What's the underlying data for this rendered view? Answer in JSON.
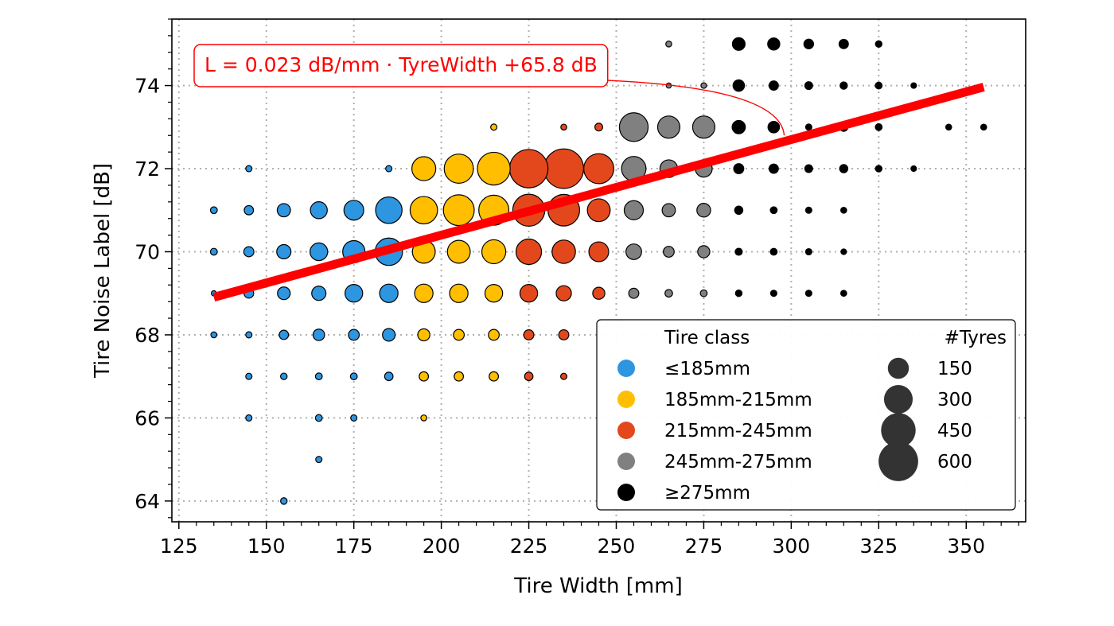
{
  "chart_data": {
    "type": "scatter",
    "title": "",
    "xlabel": "Tire Width [mm]",
    "ylabel": "Tire Noise Label [dB]",
    "xlim": [
      123,
      367
    ],
    "ylim": [
      63.5,
      75.6
    ],
    "x_ticks": [
      125,
      150,
      175,
      200,
      225,
      250,
      275,
      300,
      325,
      350
    ],
    "y_ticks": [
      64,
      66,
      68,
      70,
      72,
      74
    ],
    "grid": true,
    "legend_position": "lower-right",
    "fit": {
      "slope": 0.023,
      "intercept": 65.8,
      "x_range": [
        135,
        355
      ],
      "color": "#ff0000",
      "label": "L = 0.023 dB/mm · TyreWidth +65.8 dB",
      "label_anchor": [
        298,
        72.8
      ]
    },
    "classes": [
      {
        "name": "≤185mm",
        "color": "#2e95e0",
        "x": [
          135,
          145,
          155,
          165,
          175,
          185
        ]
      },
      {
        "name": "185mm-215mm",
        "color": "#ffbf00",
        "x": [
          195,
          205,
          215
        ]
      },
      {
        "name": "215mm-245mm",
        "color": "#e3481d",
        "x": [
          225,
          235,
          245
        ]
      },
      {
        "name": "245mm-275mm",
        "color": "#808080",
        "x": [
          255,
          265,
          275
        ]
      },
      {
        "name": "≥275mm",
        "color": "#000000",
        "x": [
          285,
          295,
          305,
          315,
          325,
          335,
          345,
          355
        ]
      }
    ],
    "points": [
      {
        "x": 135,
        "y": 71,
        "n": 8
      },
      {
        "x": 135,
        "y": 70,
        "n": 8
      },
      {
        "x": 135,
        "y": 69,
        "n": 3
      },
      {
        "x": 135,
        "y": 68,
        "n": 5
      },
      {
        "x": 145,
        "y": 72,
        "n": 6
      },
      {
        "x": 145,
        "y": 71,
        "n": 20
      },
      {
        "x": 145,
        "y": 70,
        "n": 25
      },
      {
        "x": 145,
        "y": 69,
        "n": 22
      },
      {
        "x": 145,
        "y": 68,
        "n": 6
      },
      {
        "x": 145,
        "y": 67,
        "n": 6
      },
      {
        "x": 145,
        "y": 66,
        "n": 6
      },
      {
        "x": 155,
        "y": 71,
        "n": 50
      },
      {
        "x": 155,
        "y": 70,
        "n": 60
      },
      {
        "x": 155,
        "y": 69,
        "n": 45
      },
      {
        "x": 155,
        "y": 68,
        "n": 20
      },
      {
        "x": 155,
        "y": 67,
        "n": 7
      },
      {
        "x": 155,
        "y": 64,
        "n": 7
      },
      {
        "x": 165,
        "y": 71,
        "n": 90
      },
      {
        "x": 165,
        "y": 70,
        "n": 100
      },
      {
        "x": 165,
        "y": 69,
        "n": 60
      },
      {
        "x": 165,
        "y": 68,
        "n": 35
      },
      {
        "x": 165,
        "y": 67,
        "n": 8
      },
      {
        "x": 165,
        "y": 66,
        "n": 8
      },
      {
        "x": 165,
        "y": 65,
        "n": 6
      },
      {
        "x": 175,
        "y": 71,
        "n": 130
      },
      {
        "x": 175,
        "y": 70,
        "n": 170
      },
      {
        "x": 175,
        "y": 69,
        "n": 100
      },
      {
        "x": 175,
        "y": 68,
        "n": 30
      },
      {
        "x": 175,
        "y": 67,
        "n": 8
      },
      {
        "x": 175,
        "y": 66,
        "n": 6
      },
      {
        "x": 185,
        "y": 72,
        "n": 6
      },
      {
        "x": 185,
        "y": 71,
        "n": 250
      },
      {
        "x": 185,
        "y": 70,
        "n": 270
      },
      {
        "x": 185,
        "y": 69,
        "n": 110
      },
      {
        "x": 185,
        "y": 68,
        "n": 45
      },
      {
        "x": 185,
        "y": 67,
        "n": 15
      },
      {
        "x": 195,
        "y": 72,
        "n": 200
      },
      {
        "x": 195,
        "y": 71,
        "n": 270
      },
      {
        "x": 195,
        "y": 70,
        "n": 180
      },
      {
        "x": 195,
        "y": 69,
        "n": 110
      },
      {
        "x": 195,
        "y": 68,
        "n": 40
      },
      {
        "x": 195,
        "y": 67,
        "n": 20
      },
      {
        "x": 195,
        "y": 66,
        "n": 5
      },
      {
        "x": 205,
        "y": 72,
        "n": 310
      },
      {
        "x": 205,
        "y": 71,
        "n": 350
      },
      {
        "x": 205,
        "y": 70,
        "n": 180
      },
      {
        "x": 205,
        "y": 69,
        "n": 110
      },
      {
        "x": 205,
        "y": 68,
        "n": 30
      },
      {
        "x": 205,
        "y": 67,
        "n": 20
      },
      {
        "x": 215,
        "y": 73,
        "n": 6
      },
      {
        "x": 215,
        "y": 72,
        "n": 400
      },
      {
        "x": 215,
        "y": 71,
        "n": 330
      },
      {
        "x": 215,
        "y": 70,
        "n": 200
      },
      {
        "x": 215,
        "y": 69,
        "n": 100
      },
      {
        "x": 215,
        "y": 68,
        "n": 30
      },
      {
        "x": 215,
        "y": 67,
        "n": 20
      },
      {
        "x": 225,
        "y": 72,
        "n": 560
      },
      {
        "x": 225,
        "y": 71,
        "n": 380
      },
      {
        "x": 225,
        "y": 70,
        "n": 230
      },
      {
        "x": 225,
        "y": 69,
        "n": 100
      },
      {
        "x": 225,
        "y": 68,
        "n": 25
      },
      {
        "x": 225,
        "y": 67,
        "n": 15
      },
      {
        "x": 235,
        "y": 73,
        "n": 5
      },
      {
        "x": 235,
        "y": 72,
        "n": 600
      },
      {
        "x": 235,
        "y": 71,
        "n": 370
      },
      {
        "x": 235,
        "y": 70,
        "n": 190
      },
      {
        "x": 235,
        "y": 69,
        "n": 70
      },
      {
        "x": 235,
        "y": 68,
        "n": 25
      },
      {
        "x": 235,
        "y": 67,
        "n": 6
      },
      {
        "x": 245,
        "y": 73,
        "n": 12
      },
      {
        "x": 245,
        "y": 72,
        "n": 330
      },
      {
        "x": 245,
        "y": 71,
        "n": 180
      },
      {
        "x": 245,
        "y": 70,
        "n": 130
      },
      {
        "x": 245,
        "y": 69,
        "n": 40
      },
      {
        "x": 255,
        "y": 73,
        "n": 300
      },
      {
        "x": 255,
        "y": 72,
        "n": 210
      },
      {
        "x": 255,
        "y": 71,
        "n": 120
      },
      {
        "x": 255,
        "y": 70,
        "n": 75
      },
      {
        "x": 255,
        "y": 69,
        "n": 25
      },
      {
        "x": 265,
        "y": 75,
        "n": 5
      },
      {
        "x": 265,
        "y": 74,
        "n": 3
      },
      {
        "x": 265,
        "y": 73,
        "n": 170
      },
      {
        "x": 265,
        "y": 72,
        "n": 100
      },
      {
        "x": 265,
        "y": 71,
        "n": 50
      },
      {
        "x": 265,
        "y": 70,
        "n": 30
      },
      {
        "x": 265,
        "y": 69,
        "n": 11
      },
      {
        "x": 275,
        "y": 74,
        "n": 4
      },
      {
        "x": 275,
        "y": 73,
        "n": 170
      },
      {
        "x": 275,
        "y": 72,
        "n": 90
      },
      {
        "x": 275,
        "y": 71,
        "n": 55
      },
      {
        "x": 275,
        "y": 70,
        "n": 40
      },
      {
        "x": 275,
        "y": 69,
        "n": 8
      },
      {
        "x": 285,
        "y": 75,
        "n": 45
      },
      {
        "x": 285,
        "y": 74,
        "n": 35
      },
      {
        "x": 285,
        "y": 73,
        "n": 50
      },
      {
        "x": 285,
        "y": 72,
        "n": 25
      },
      {
        "x": 285,
        "y": 71,
        "n": 14
      },
      {
        "x": 285,
        "y": 70,
        "n": 9
      },
      {
        "x": 285,
        "y": 69,
        "n": 7
      },
      {
        "x": 295,
        "y": 75,
        "n": 40
      },
      {
        "x": 295,
        "y": 74,
        "n": 20
      },
      {
        "x": 295,
        "y": 73,
        "n": 35
      },
      {
        "x": 295,
        "y": 72,
        "n": 20
      },
      {
        "x": 295,
        "y": 71,
        "n": 8
      },
      {
        "x": 295,
        "y": 70,
        "n": 8
      },
      {
        "x": 295,
        "y": 69,
        "n": 6
      },
      {
        "x": 305,
        "y": 75,
        "n": 22
      },
      {
        "x": 305,
        "y": 74,
        "n": 12
      },
      {
        "x": 305,
        "y": 73,
        "n": 6
      },
      {
        "x": 305,
        "y": 72,
        "n": 12
      },
      {
        "x": 305,
        "y": 71,
        "n": 6
      },
      {
        "x": 305,
        "y": 70,
        "n": 6
      },
      {
        "x": 305,
        "y": 69,
        "n": 6
      },
      {
        "x": 315,
        "y": 75,
        "n": 20
      },
      {
        "x": 315,
        "y": 74,
        "n": 10
      },
      {
        "x": 315,
        "y": 73,
        "n": 15
      },
      {
        "x": 315,
        "y": 72,
        "n": 14
      },
      {
        "x": 315,
        "y": 71,
        "n": 5
      },
      {
        "x": 315,
        "y": 70,
        "n": 4
      },
      {
        "x": 315,
        "y": 69,
        "n": 5
      },
      {
        "x": 325,
        "y": 75,
        "n": 7
      },
      {
        "x": 325,
        "y": 74,
        "n": 8
      },
      {
        "x": 325,
        "y": 73,
        "n": 8
      },
      {
        "x": 325,
        "y": 72,
        "n": 7
      },
      {
        "x": 335,
        "y": 74,
        "n": 4
      },
      {
        "x": 335,
        "y": 72,
        "n": 4
      },
      {
        "x": 345,
        "y": 73,
        "n": 5
      },
      {
        "x": 355,
        "y": 73,
        "n": 5
      }
    ],
    "legend": {
      "class_title": "Tire class",
      "class_entries": [
        {
          "label": "≤185mm",
          "color": "#2e95e0"
        },
        {
          "label": "185mm-215mm",
          "color": "#ffbf00"
        },
        {
          "label": "215mm-245mm",
          "color": "#e3481d"
        },
        {
          "label": "245mm-275mm",
          "color": "#808080"
        },
        {
          "label": "≥275mm",
          "color": "#000000"
        }
      ],
      "size_title": "#Tyres",
      "size_entries": [
        {
          "label": "150",
          "n": 150
        },
        {
          "label": "300",
          "n": 300
        },
        {
          "label": "450",
          "n": 450
        },
        {
          "label": "600",
          "n": 600
        }
      ],
      "size_marker_color": "#333333"
    }
  }
}
